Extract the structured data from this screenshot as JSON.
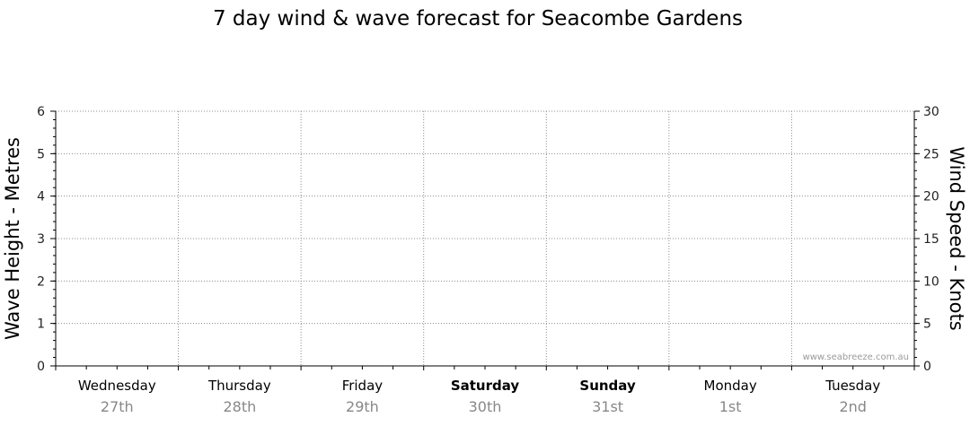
{
  "chart_data": {
    "type": "line",
    "title": "7 day wind & wave forecast for Seacombe Gardens",
    "ylabel_left": "Wave Height - Metres",
    "ylabel_right": "Wind Speed - Knots",
    "ylim_left": [
      0,
      6
    ],
    "ylim_right": [
      0,
      30
    ],
    "yticks_left": [
      "0",
      "1",
      "2",
      "3",
      "4",
      "5",
      "6"
    ],
    "yticks_right": [
      "0",
      "5",
      "10",
      "15",
      "20",
      "25",
      "30"
    ],
    "grid": true,
    "days": [
      {
        "name": "Wednesday",
        "date": "27th",
        "bold": false
      },
      {
        "name": "Thursday",
        "date": "28th",
        "bold": false
      },
      {
        "name": "Friday",
        "date": "29th",
        "bold": false
      },
      {
        "name": "Saturday",
        "date": "30th",
        "bold": true
      },
      {
        "name": "Sunday",
        "date": "31st",
        "bold": true
      },
      {
        "name": "Monday",
        "date": "1st",
        "bold": false
      },
      {
        "name": "Tuesday",
        "date": "2nd",
        "bold": false
      }
    ],
    "series": [],
    "watermark": "www.seabreeze.com.au"
  }
}
